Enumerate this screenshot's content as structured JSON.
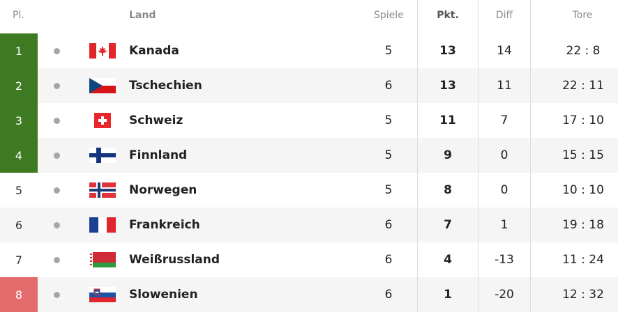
{
  "header": {
    "pos": "Pl.",
    "team": "Land",
    "games": "Spiele",
    "points": "Pkt.",
    "diff": "Diff",
    "goals": "Tore"
  },
  "colors": {
    "qualified": "#3e7a22",
    "relegated": "#e36b6b",
    "dot": "#a6a6a6"
  },
  "rows": [
    {
      "pos": "1",
      "team": "Kanada",
      "flag": "canada-flag",
      "games": "5",
      "points": "13",
      "diff": "14",
      "goals": "22 : 8"
    },
    {
      "pos": "2",
      "team": "Tschechien",
      "flag": "czech-flag",
      "games": "6",
      "points": "13",
      "diff": "11",
      "goals": "22 : 11"
    },
    {
      "pos": "3",
      "team": "Schweiz",
      "flag": "switzerland-flag",
      "games": "5",
      "points": "11",
      "diff": "7",
      "goals": "17 : 10"
    },
    {
      "pos": "4",
      "team": "Finnland",
      "flag": "finland-flag",
      "games": "5",
      "points": "9",
      "diff": "0",
      "goals": "15 : 15"
    },
    {
      "pos": "5",
      "team": "Norwegen",
      "flag": "norway-flag",
      "games": "5",
      "points": "8",
      "diff": "0",
      "goals": "10 : 10"
    },
    {
      "pos": "6",
      "team": "Frankreich",
      "flag": "france-flag",
      "games": "6",
      "points": "7",
      "diff": "1",
      "goals": "19 : 18"
    },
    {
      "pos": "7",
      "team": "Weißrussland",
      "flag": "belarus-flag",
      "games": "6",
      "points": "4",
      "diff": "-13",
      "goals": "11 : 24"
    },
    {
      "pos": "8",
      "team": "Slowenien",
      "flag": "slovenia-flag",
      "games": "6",
      "points": "1",
      "diff": "-20",
      "goals": "12 : 32"
    }
  ]
}
